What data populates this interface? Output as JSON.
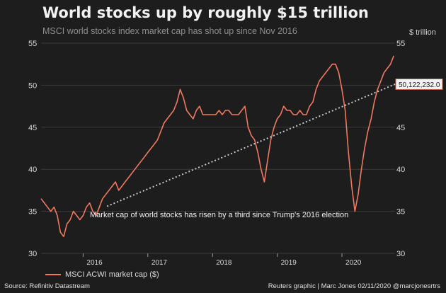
{
  "header": {
    "title": "World stocks up by roughly $15 trillion",
    "subtitle": "MSCI world stocks index market cap has shot up since Nov 2016",
    "unit": "$ trillion"
  },
  "footer": {
    "source": "Source: Refinitiv Datastream",
    "credit": "Reuters graphic | Marc Jones 02/11/2020 @marcjonesrtrs"
  },
  "chart_data": {
    "type": "line",
    "title": "World stocks up by roughly $15 trillion",
    "subtitle": "MSCI world stocks index market cap has shot up since Nov 2016",
    "ylabel": "$ trillion",
    "ylim": [
      30,
      55
    ],
    "xlim": [
      2015.35,
      2020.82
    ],
    "y_ticks": [
      30,
      35,
      40,
      45,
      50,
      55
    ],
    "x_ticks": [
      {
        "value": 2016.0,
        "label": "2016"
      },
      {
        "value": 2017.0,
        "label": "2017"
      },
      {
        "value": 2018.0,
        "label": "2018"
      },
      {
        "value": 2019.0,
        "label": "2019"
      },
      {
        "value": 2020.0,
        "label": "2020"
      }
    ],
    "grid": "horizontal",
    "legend_position": "bottom-left",
    "colors": {
      "series": "#f07860",
      "trend": "#c8c8c8",
      "background": "#1d1d1d"
    },
    "series": [
      {
        "name": "MSCI ACWI market cap ($)",
        "x": [
          2015.35,
          2015.4,
          2015.45,
          2015.5,
          2015.55,
          2015.6,
          2015.65,
          2015.7,
          2015.75,
          2015.8,
          2015.85,
          2015.9,
          2015.95,
          2016.0,
          2016.05,
          2016.1,
          2016.15,
          2016.2,
          2016.25,
          2016.3,
          2016.35,
          2016.4,
          2016.45,
          2016.5,
          2016.55,
          2016.6,
          2016.65,
          2016.7,
          2016.75,
          2016.8,
          2016.85,
          2016.9,
          2016.95,
          2017.0,
          2017.05,
          2017.1,
          2017.15,
          2017.2,
          2017.25,
          2017.3,
          2017.35,
          2017.4,
          2017.45,
          2017.5,
          2017.55,
          2017.6,
          2017.65,
          2017.7,
          2017.75,
          2017.8,
          2017.85,
          2017.9,
          2017.95,
          2018.0,
          2018.05,
          2018.1,
          2018.15,
          2018.2,
          2018.25,
          2018.3,
          2018.35,
          2018.4,
          2018.45,
          2018.5,
          2018.55,
          2018.6,
          2018.65,
          2018.7,
          2018.75,
          2018.8,
          2018.85,
          2018.9,
          2018.95,
          2019.0,
          2019.05,
          2019.1,
          2019.15,
          2019.2,
          2019.25,
          2019.3,
          2019.35,
          2019.4,
          2019.45,
          2019.5,
          2019.55,
          2019.6,
          2019.65,
          2019.7,
          2019.75,
          2019.8,
          2019.85,
          2019.9,
          2019.95,
          2020.0,
          2020.05,
          2020.1,
          2020.15,
          2020.2,
          2020.25,
          2020.3,
          2020.35,
          2020.4,
          2020.45,
          2020.5,
          2020.55,
          2020.6,
          2020.65,
          2020.7,
          2020.75,
          2020.8
        ],
        "values": [
          36.5,
          36.0,
          35.5,
          35.0,
          35.5,
          34.5,
          32.5,
          32.0,
          33.5,
          34.0,
          35.0,
          34.5,
          34.0,
          34.5,
          35.5,
          36.0,
          35.0,
          34.5,
          35.5,
          36.5,
          37.0,
          37.5,
          38.0,
          38.5,
          37.5,
          38.0,
          38.5,
          39.0,
          39.5,
          40.0,
          40.5,
          41.0,
          41.5,
          42.0,
          42.5,
          43.0,
          43.5,
          44.5,
          45.5,
          46.0,
          46.5,
          47.0,
          48.0,
          49.5,
          48.5,
          47.0,
          46.5,
          46.0,
          47.0,
          47.5,
          46.5,
          46.5,
          46.5,
          46.5,
          46.5,
          47.0,
          46.5,
          47.0,
          47.0,
          46.5,
          46.5,
          46.5,
          47.0,
          47.5,
          45.0,
          44.0,
          43.5,
          42.0,
          40.0,
          38.5,
          41.0,
          43.5,
          45.0,
          46.0,
          46.5,
          47.5,
          47.0,
          47.0,
          46.5,
          46.5,
          47.0,
          46.5,
          46.5,
          47.5,
          48.0,
          49.5,
          50.5,
          51.0,
          51.5,
          52.0,
          52.5,
          52.5,
          51.5,
          49.5,
          47.0,
          42.0,
          38.0,
          35.0,
          37.0,
          40.0,
          42.5,
          44.5,
          46.0,
          48.0,
          49.5,
          50.5,
          51.5,
          52.0,
          52.5,
          53.5
        ]
      },
      {
        "name": "trend",
        "x": [
          2016.37,
          2020.82
        ],
        "values": [
          35.6,
          50.12
        ]
      }
    ],
    "end_label": "50,122,232.0",
    "annotation": "Market cap of world stocks has risen by a third since Trump's 2016 election"
  }
}
